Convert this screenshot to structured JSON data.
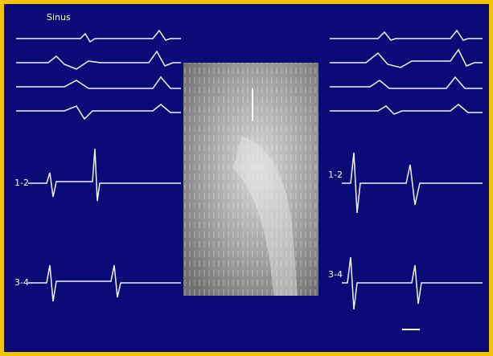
{
  "figure": {
    "title": "Sinus",
    "left_channels": [
      "1-2",
      "3-4"
    ],
    "right_channels": [
      "1-2",
      "3-4"
    ]
  }
}
